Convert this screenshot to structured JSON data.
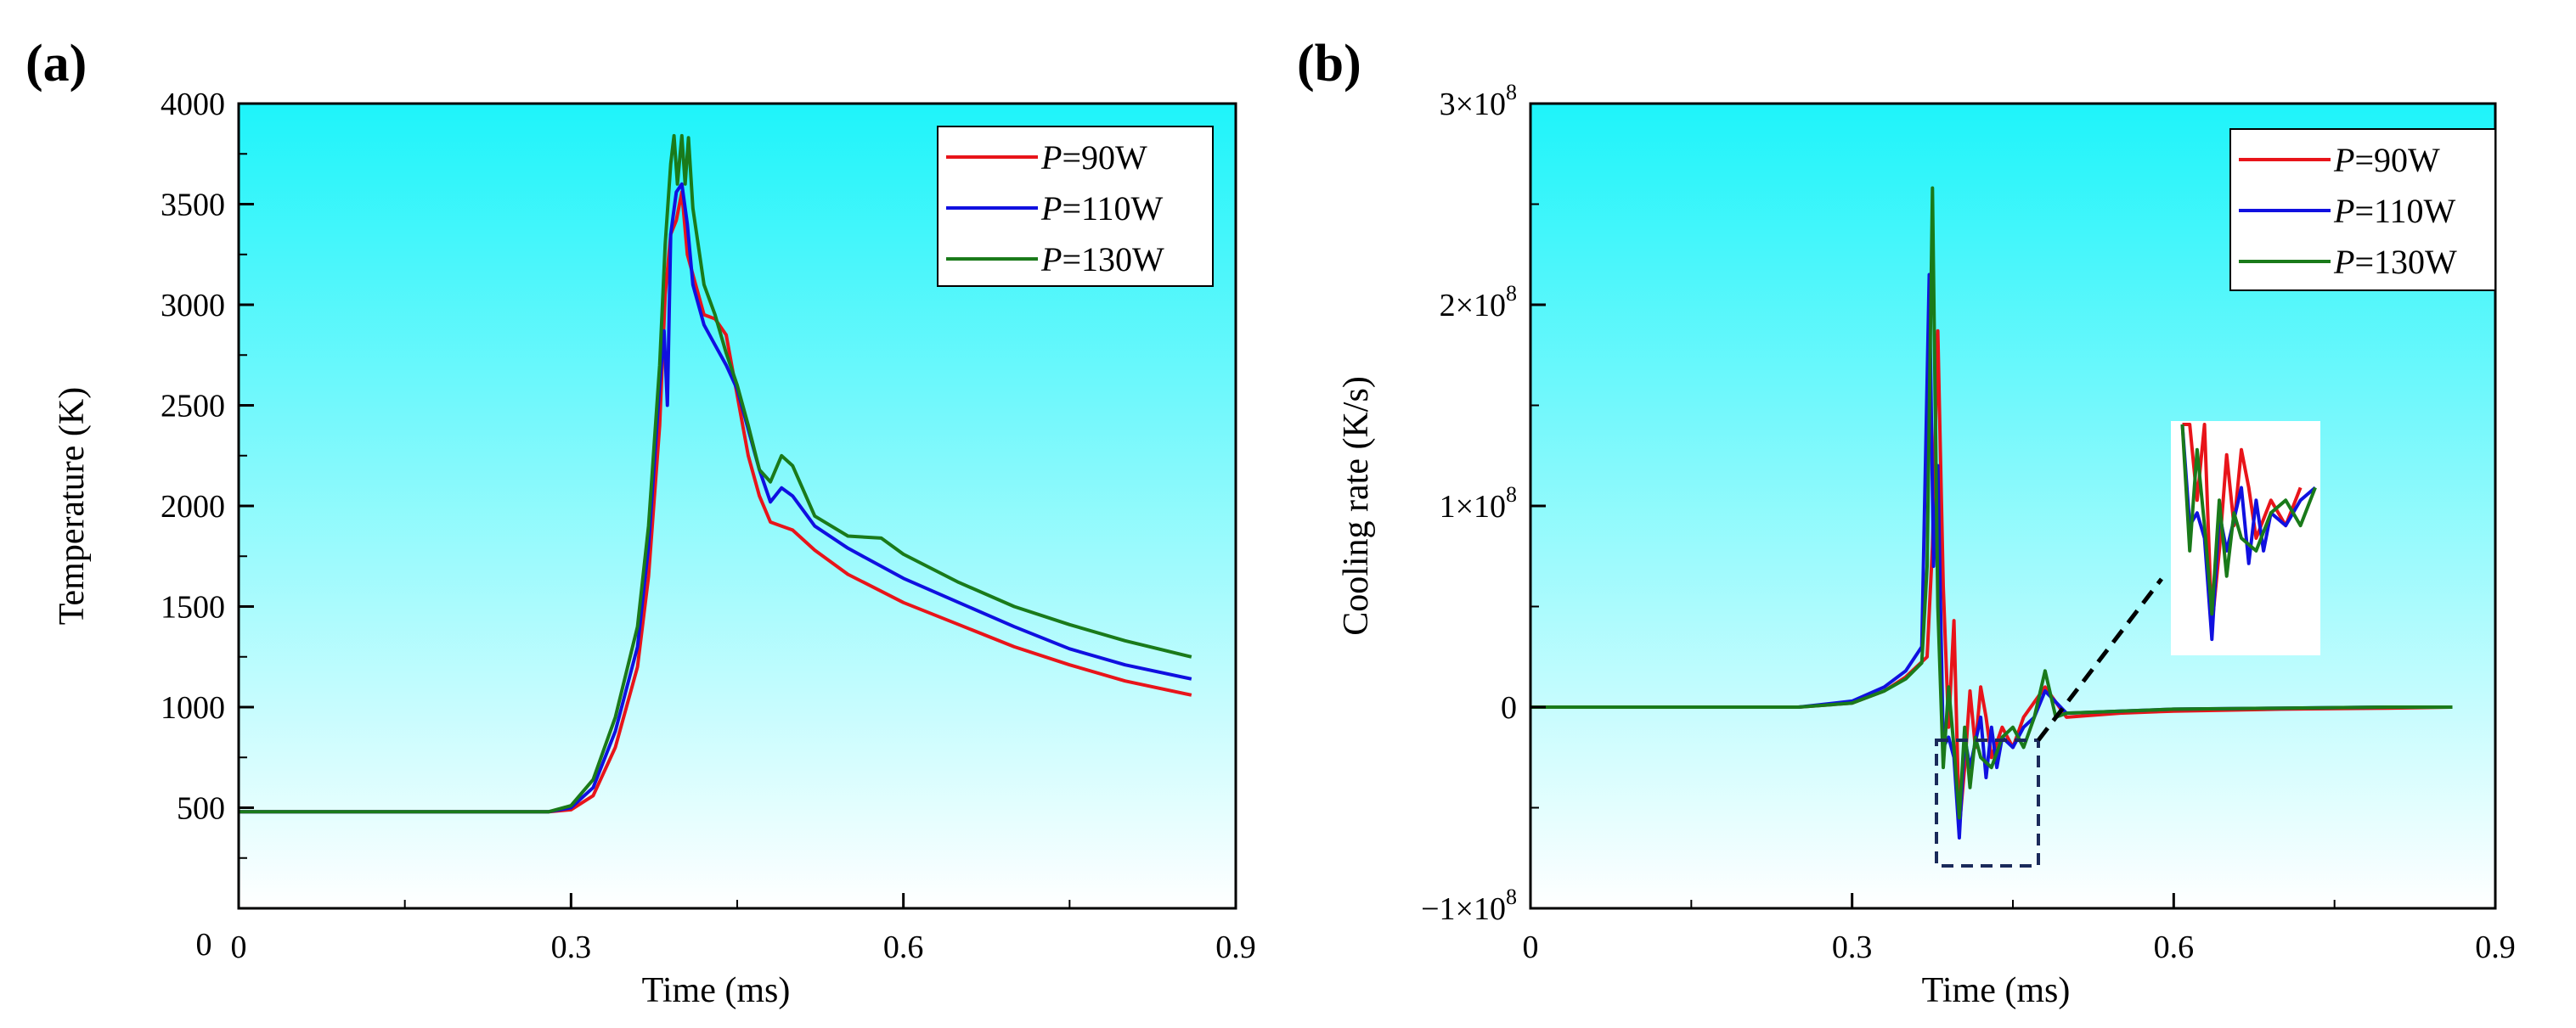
{
  "figure": {
    "panels": [
      {
        "label": "(a)"
      },
      {
        "label": "(b)"
      }
    ]
  },
  "colors": {
    "P90": "#e8141a",
    "P110": "#1010e0",
    "P130": "#1a7a1a",
    "background_top": "#1ef4fa",
    "background_bottom": "#ffffff"
  },
  "chart_data": [
    {
      "type": "line",
      "panel": "(a)",
      "title": "",
      "xlabel": "Time (ms)",
      "ylabel": "Temperature (K)",
      "xlim": [
        0,
        0.9
      ],
      "ylim": [
        0,
        4000
      ],
      "x_ticks": [
        0,
        0.3,
        0.6,
        0.9
      ],
      "x_tick_labels": [
        "0",
        "0.3",
        "0.6",
        "0.9"
      ],
      "y_ticks": [
        500,
        1000,
        1500,
        2000,
        2500,
        3000,
        3500,
        4000
      ],
      "y_tick_labels": [
        "500",
        "1000",
        "1500",
        "2000",
        "2500",
        "3000",
        "3500",
        "4000"
      ],
      "grid": false,
      "legend_position": "top-right",
      "series": [
        {
          "name": "P=90W",
          "legend_italic": "P",
          "legend_rest": "=90W",
          "color": "#e8141a",
          "x": [
            0,
            0.28,
            0.3,
            0.32,
            0.34,
            0.36,
            0.37,
            0.38,
            0.385,
            0.39,
            0.395,
            0.4,
            0.405,
            0.41,
            0.42,
            0.43,
            0.44,
            0.45,
            0.46,
            0.47,
            0.48,
            0.49,
            0.5,
            0.52,
            0.55,
            0.6,
            0.65,
            0.7,
            0.75,
            0.8,
            0.86
          ],
          "y": [
            480,
            480,
            490,
            560,
            800,
            1200,
            1650,
            2400,
            3050,
            3350,
            3420,
            3560,
            3250,
            3150,
            2950,
            2930,
            2850,
            2550,
            2250,
            2050,
            1920,
            1900,
            1880,
            1780,
            1660,
            1520,
            1410,
            1300,
            1210,
            1130,
            1060
          ]
        },
        {
          "name": "P=110W",
          "legend_italic": "P",
          "legend_rest": "=110W",
          "color": "#1010e0",
          "x": [
            0,
            0.28,
            0.3,
            0.32,
            0.34,
            0.36,
            0.37,
            0.38,
            0.384,
            0.387,
            0.39,
            0.395,
            0.4,
            0.405,
            0.41,
            0.42,
            0.43,
            0.44,
            0.45,
            0.46,
            0.47,
            0.48,
            0.49,
            0.5,
            0.52,
            0.55,
            0.6,
            0.65,
            0.7,
            0.75,
            0.8,
            0.86
          ],
          "y": [
            480,
            480,
            500,
            600,
            880,
            1300,
            1800,
            2600,
            2870,
            2500,
            3350,
            3560,
            3600,
            3400,
            3100,
            2900,
            2800,
            2700,
            2580,
            2380,
            2180,
            2020,
            2090,
            2050,
            1900,
            1790,
            1640,
            1520,
            1400,
            1290,
            1210,
            1140
          ]
        },
        {
          "name": "P=130W",
          "legend_italic": "P",
          "legend_rest": "=130W",
          "color": "#1a7a1a",
          "x": [
            0,
            0.28,
            0.3,
            0.32,
            0.34,
            0.36,
            0.37,
            0.38,
            0.385,
            0.39,
            0.393,
            0.396,
            0.4,
            0.403,
            0.406,
            0.41,
            0.42,
            0.43,
            0.44,
            0.45,
            0.46,
            0.47,
            0.48,
            0.49,
            0.5,
            0.52,
            0.55,
            0.58,
            0.6,
            0.65,
            0.7,
            0.75,
            0.8,
            0.86
          ],
          "y": [
            480,
            480,
            510,
            640,
            950,
            1400,
            1900,
            2700,
            3300,
            3700,
            3840,
            3600,
            3840,
            3600,
            3830,
            3480,
            3100,
            2950,
            2760,
            2600,
            2400,
            2180,
            2120,
            2250,
            2200,
            1950,
            1850,
            1840,
            1760,
            1620,
            1500,
            1410,
            1330,
            1250
          ]
        }
      ]
    },
    {
      "type": "line",
      "panel": "(b)",
      "title": "",
      "xlabel": "Time (ms)",
      "ylabel": "Cooling rate (K/s)",
      "xlim": [
        0,
        0.9
      ],
      "ylim": [
        -100000000,
        300000000
      ],
      "x_ticks": [
        0,
        0.3,
        0.6,
        0.9
      ],
      "x_tick_labels": [
        "0",
        "0.3",
        "0.6",
        "0.9"
      ],
      "y_ticks": [
        -100000000,
        0,
        100000000,
        200000000,
        300000000
      ],
      "y_tick_labels": [
        {
          "mantissa": "−1×10",
          "exp": "8"
        },
        {
          "mantissa": "0",
          "exp": ""
        },
        {
          "mantissa": "1×10",
          "exp": "8"
        },
        {
          "mantissa": "2×10",
          "exp": "8"
        },
        {
          "mantissa": "3×10",
          "exp": "8"
        }
      ],
      "grid": false,
      "legend_position": "top-right",
      "annotations": [
        "dashed zoom box around the 0.36–0.46 ms oscillation region with a dashed arrow to an inset magnified view"
      ],
      "series": [
        {
          "name": "P=90W",
          "legend_italic": "P",
          "legend_rest": "=90W",
          "color": "#e8141a",
          "x": [
            0,
            0.25,
            0.3,
            0.33,
            0.35,
            0.37,
            0.375,
            0.38,
            0.385,
            0.39,
            0.395,
            0.4,
            0.405,
            0.41,
            0.415,
            0.42,
            0.425,
            0.43,
            0.44,
            0.45,
            0.46,
            0.48,
            0.5,
            0.55,
            0.6,
            0.7,
            0.8,
            0.86
          ],
          "y": [
            0,
            0,
            2000000,
            8000000,
            15000000,
            25000000,
            80000000,
            187000000,
            60000000,
            -10000000,
            43000000,
            -60000000,
            -30000000,
            8000000,
            -20000000,
            10000000,
            -5000000,
            -25000000,
            -10000000,
            -20000000,
            -5000000,
            10000000,
            -5000000,
            -3000000,
            -2000000,
            -1000000,
            -500000,
            0
          ]
        },
        {
          "name": "P=110W",
          "legend_italic": "P",
          "legend_rest": "=110W",
          "color": "#1010e0",
          "x": [
            0,
            0.25,
            0.3,
            0.33,
            0.35,
            0.365,
            0.372,
            0.376,
            0.38,
            0.385,
            0.39,
            0.395,
            0.4,
            0.405,
            0.41,
            0.42,
            0.425,
            0.43,
            0.435,
            0.44,
            0.45,
            0.46,
            0.47,
            0.48,
            0.5,
            0.55,
            0.6,
            0.7,
            0.8,
            0.86
          ],
          "y": [
            0,
            0,
            3000000,
            10000000,
            18000000,
            30000000,
            215000000,
            70000000,
            120000000,
            -20000000,
            -15000000,
            -25000000,
            -65000000,
            -15000000,
            -30000000,
            -5000000,
            -35000000,
            -10000000,
            -30000000,
            -15000000,
            -20000000,
            -10000000,
            -5000000,
            8000000,
            -3000000,
            -2000000,
            -1000000,
            -500000,
            0,
            0
          ]
        },
        {
          "name": "P=130W",
          "legend_italic": "P",
          "legend_rest": "=130W",
          "color": "#1a7a1a",
          "x": [
            0,
            0.25,
            0.3,
            0.33,
            0.35,
            0.365,
            0.37,
            0.375,
            0.38,
            0.385,
            0.39,
            0.395,
            0.4,
            0.405,
            0.41,
            0.415,
            0.42,
            0.43,
            0.44,
            0.45,
            0.46,
            0.47,
            0.48,
            0.49,
            0.5,
            0.55,
            0.6,
            0.7,
            0.8,
            0.86
          ],
          "y": [
            0,
            0,
            2000000,
            8000000,
            14000000,
            22000000,
            70000000,
            258000000,
            50000000,
            -30000000,
            10000000,
            -20000000,
            -55000000,
            -10000000,
            -40000000,
            -15000000,
            -25000000,
            -30000000,
            -15000000,
            -10000000,
            -20000000,
            -5000000,
            18000000,
            -5000000,
            -3000000,
            -2000000,
            -1000000,
            -500000,
            0,
            0
          ]
        }
      ]
    }
  ]
}
